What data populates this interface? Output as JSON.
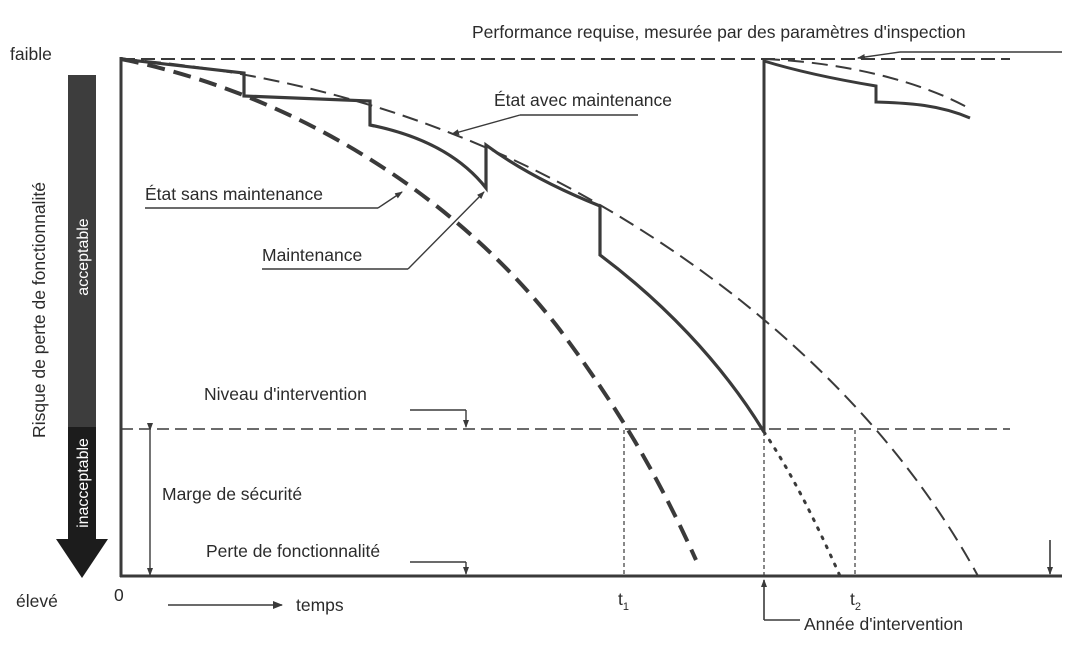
{
  "axis": {
    "top_label": "faible",
    "bottom_label": "élevé",
    "origin_label": "0",
    "y_axis_title": "Risque de perte de fonctionnalité",
    "x_axis_title": "temps"
  },
  "risk_bar": {
    "acceptable": "acceptable",
    "inacceptable": "inacceptable"
  },
  "labels": {
    "required_performance": "Performance requise, mesurée par des paramètres d'inspection",
    "with_maintenance": "État avec maintenance",
    "without_maintenance": "État sans maintenance",
    "maintenance": "Maintenance",
    "intervention_level": "Niveau d'intervention",
    "safety_margin": "Marge de sécurité",
    "loss_of_function": "Perte de fonctionnalité",
    "intervention_year": "Année d'intervention"
  },
  "time_marks": {
    "t1": "t",
    "t1_sub": "1",
    "t2": "t",
    "t2_sub": "2"
  },
  "colors": {
    "line": "#3a3a3a",
    "bar": "#3d3d3d",
    "background": "#ffffff"
  }
}
